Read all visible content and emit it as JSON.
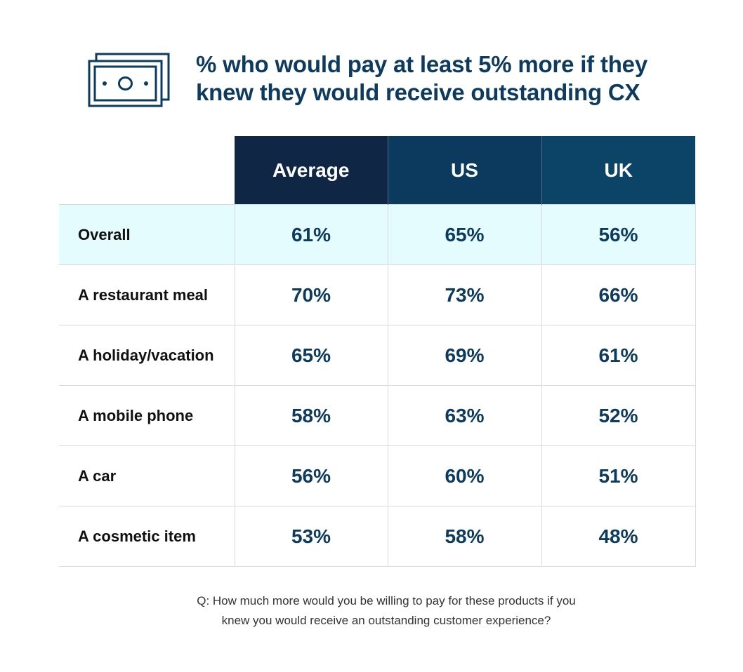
{
  "header": {
    "icon": "money-bill-icon",
    "title_line1": "% who would pay at least 5% more if they",
    "title_line2": "knew they would receive outstanding CX"
  },
  "colors": {
    "title": "#0d3b5f",
    "header_average": "#0f2745",
    "header_us": "#0c3a5e",
    "header_uk": "#0c4468",
    "highlight_row": "#e4fcfd",
    "grid": "#d9d9d9"
  },
  "chart_data": {
    "type": "table",
    "title": "% who would pay at least 5% more if they knew they would receive outstanding CX",
    "columns": [
      "Average",
      "US",
      "UK"
    ],
    "rows": [
      {
        "label": "Overall",
        "values": [
          "61%",
          "65%",
          "56%"
        ],
        "highlight": true
      },
      {
        "label": "A restaurant meal",
        "values": [
          "70%",
          "73%",
          "66%"
        ]
      },
      {
        "label": "A holiday/vacation",
        "values": [
          "65%",
          "69%",
          "61%"
        ]
      },
      {
        "label": "A mobile phone",
        "values": [
          "58%",
          "63%",
          "52%"
        ]
      },
      {
        "label": "A car",
        "values": [
          "56%",
          "60%",
          "51%"
        ]
      },
      {
        "label": "A cosmetic item",
        "values": [
          "53%",
          "58%",
          "48%"
        ]
      }
    ]
  },
  "footnote": {
    "line1": "Q: How much more would you be willing to pay for these products if you",
    "line2": "knew you would receive an outstanding customer experience?"
  }
}
